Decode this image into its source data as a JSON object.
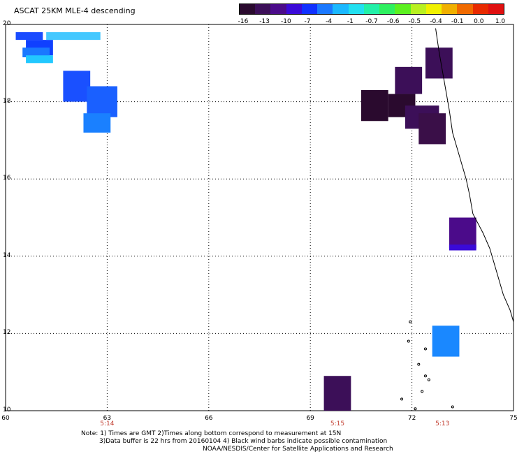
{
  "title": "ASCAT 25KM MLE-4 descending",
  "colorbar": {
    "colors": [
      "#2a0a2e",
      "#3c0f58",
      "#4b0b8a",
      "#3a0ad8",
      "#1030ff",
      "#1a78ff",
      "#1ab8ff",
      "#22e0f0",
      "#22f0a8",
      "#2ef060",
      "#5cf020",
      "#b8f020",
      "#f0f000",
      "#f0b000",
      "#f06a00",
      "#e82a00",
      "#e01010"
    ],
    "labels": [
      "-16",
      "-13",
      "-10",
      "-7",
      "-4",
      "-1",
      "-0.7",
      "-0.6",
      "-0.5",
      "-0.4",
      "-0.1",
      "0.0",
      "1.0"
    ]
  },
  "map": {
    "lon_range": [
      60,
      75
    ],
    "lat_range": [
      10,
      20
    ],
    "lon_ticks": [
      "60",
      "63",
      "66",
      "69",
      "72",
      "75"
    ],
    "lat_ticks": [
      "20",
      "18",
      "16",
      "14",
      "12",
      "10"
    ],
    "time_labels": [
      {
        "lon": 63,
        "text": "5:14"
      },
      {
        "lon": 69.8,
        "text": "5:15"
      },
      {
        "lon": 72.9,
        "text": "5:13"
      }
    ],
    "coastline_color": "#000000",
    "cells": [
      {
        "lon": 60.3,
        "lat": 19.8,
        "w": 0.8,
        "h": 0.2,
        "color": "#1a4cff"
      },
      {
        "lon": 60.6,
        "lat": 19.6,
        "w": 0.8,
        "h": 0.4,
        "color": "#1040ff"
      },
      {
        "lon": 60.5,
        "lat": 19.4,
        "w": 0.8,
        "h": 0.25,
        "color": "#1a78ff"
      },
      {
        "lon": 60.6,
        "lat": 19.2,
        "w": 0.8,
        "h": 0.2,
        "color": "#22c8ff"
      },
      {
        "lon": 61.2,
        "lat": 19.8,
        "w": 1.6,
        "h": 0.2,
        "color": "#44c8ff"
      },
      {
        "lon": 61.7,
        "lat": 18.8,
        "w": 0.8,
        "h": 0.8,
        "color": "#1a50ff"
      },
      {
        "lon": 62.4,
        "lat": 18.4,
        "w": 0.9,
        "h": 0.8,
        "color": "#1a60ff"
      },
      {
        "lon": 62.3,
        "lat": 17.7,
        "w": 0.8,
        "h": 0.5,
        "color": "#1a80ff"
      },
      {
        "lon": 71.5,
        "lat": 18.9,
        "w": 0.8,
        "h": 0.7,
        "color": "#3c0f58"
      },
      {
        "lon": 70.5,
        "lat": 18.3,
        "w": 0.8,
        "h": 0.8,
        "color": "#2a0a2e"
      },
      {
        "lon": 71.3,
        "lat": 18.2,
        "w": 0.8,
        "h": 0.6,
        "color": "#2a0a2e"
      },
      {
        "lon": 71.8,
        "lat": 17.9,
        "w": 1.0,
        "h": 0.6,
        "color": "#3c0f58"
      },
      {
        "lon": 72.2,
        "lat": 17.7,
        "w": 0.8,
        "h": 0.8,
        "color": "#3a0f48"
      },
      {
        "lon": 72.4,
        "lat": 19.4,
        "w": 0.8,
        "h": 0.8,
        "color": "#3c0f58"
      },
      {
        "lon": 73.1,
        "lat": 15.0,
        "w": 0.8,
        "h": 0.8,
        "color": "#4b0b8a"
      },
      {
        "lon": 73.1,
        "lat": 14.3,
        "w": 0.8,
        "h": 0.15,
        "color": "#3a0ad8"
      },
      {
        "lon": 72.6,
        "lat": 12.2,
        "w": 0.8,
        "h": 0.8,
        "color": "#1a88ff"
      },
      {
        "lon": 69.4,
        "lat": 10.9,
        "w": 0.8,
        "h": 0.9,
        "color": "#3c0f58"
      }
    ],
    "coast": [
      [
        72.7,
        19.9
      ],
      [
        72.8,
        19.3
      ],
      [
        72.9,
        18.8
      ],
      [
        73.0,
        18.3
      ],
      [
        73.1,
        17.8
      ],
      [
        73.2,
        17.2
      ],
      [
        73.4,
        16.6
      ],
      [
        73.6,
        16.0
      ],
      [
        73.7,
        15.6
      ],
      [
        73.8,
        15.1
      ],
      [
        74.1,
        14.6
      ],
      [
        74.3,
        14.2
      ],
      [
        74.5,
        13.6
      ],
      [
        74.7,
        13.0
      ],
      [
        74.9,
        12.6
      ],
      [
        75.0,
        12.3
      ]
    ],
    "islands": [
      [
        71.95,
        12.3
      ],
      [
        71.9,
        11.8
      ],
      [
        72.4,
        11.6
      ],
      [
        72.2,
        11.2
      ],
      [
        72.4,
        10.9
      ],
      [
        72.5,
        10.8
      ],
      [
        72.3,
        10.5
      ],
      [
        71.7,
        10.3
      ],
      [
        72.1,
        10.05
      ],
      [
        73.2,
        10.1
      ]
    ]
  },
  "notes": {
    "line1": "Note: 1) Times are GMT 2)Times along bottom correspond to measurement at 15N",
    "line2": "3)Data buffer is 22 hrs from 20160104 4) Black wind barbs indicate possible contamination",
    "line3": "NOAA/NESDIS/Center for Satellite Applications and Research"
  }
}
